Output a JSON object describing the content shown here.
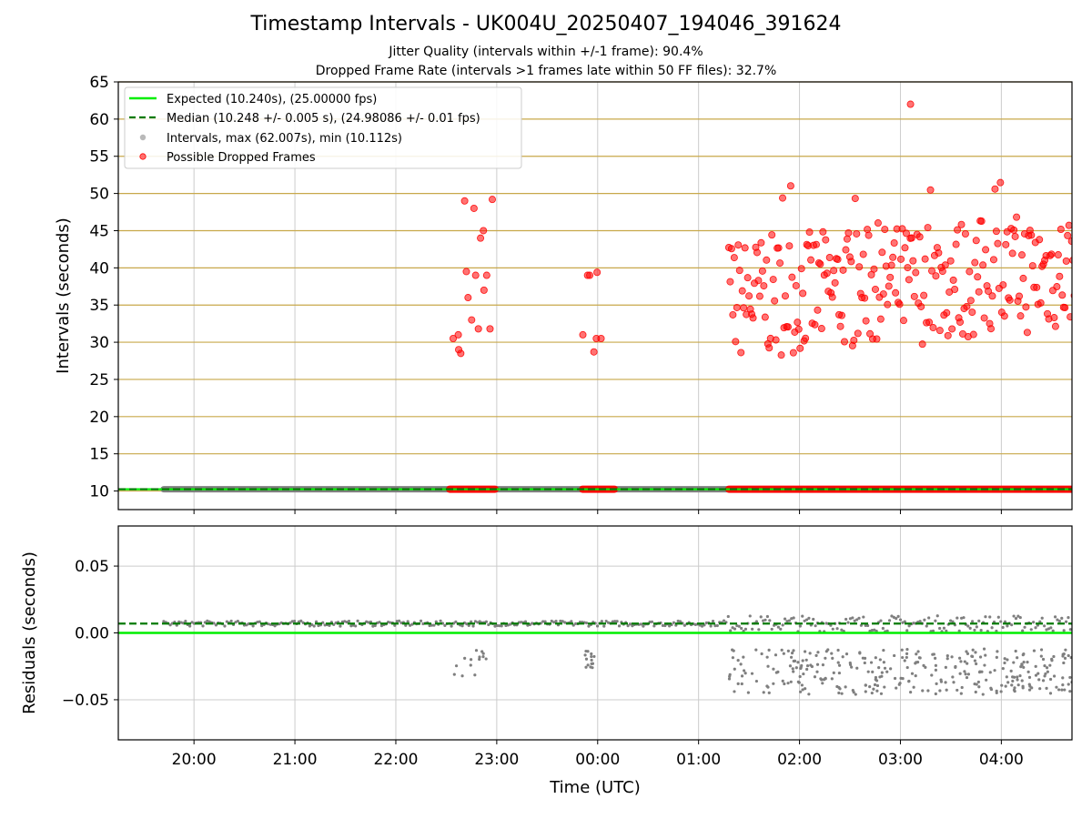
{
  "chart_data": {
    "type": "scatter",
    "title": "Timestamp Intervals - UK004U_20250407_194046_391624",
    "subtitle_lines": [
      "Jitter Quality (intervals within +/-1 frame): 90.4%",
      "Dropped Frame Rate (intervals >1 frames late within 50 FF files): 32.7%"
    ],
    "x_ticks": [
      "20:00",
      "21:00",
      "22:00",
      "23:00",
      "00:00",
      "01:00",
      "02:00",
      "03:00",
      "04:00"
    ],
    "xlabel": "Time (UTC)",
    "top_panel": {
      "ylabel": "Intervals (seconds)",
      "ylim": [
        7.5,
        65
      ],
      "y_ticks": [
        "10",
        "15",
        "20",
        "25",
        "30",
        "35",
        "40",
        "45",
        "50",
        "55",
        "60",
        "65"
      ],
      "legend": {
        "placement": "upper-left",
        "entries": [
          "Expected (10.240s), (25.00000 fps)",
          "Median (10.248 +/- 0.005 s), (24.98086 +/- 0.01 fps)",
          "Intervals, max (62.007s), min (10.112s)",
          "Possible Dropped Frames"
        ]
      },
      "expected_value": 10.24,
      "median_value": 10.248,
      "normal_interval_value": 10.24,
      "dropped_clusters": [
        {
          "x_range": [
            "22:35",
            "22:57"
          ],
          "y_values": [
            30.5,
            31,
            29,
            28.5,
            49,
            39.5,
            36,
            33,
            48,
            39,
            31.8,
            44,
            45,
            37,
            39,
            31.8,
            49.2
          ]
        },
        {
          "x_range": [
            "23:52",
            "00:02"
          ],
          "y_values": [
            31,
            39,
            39,
            28.7,
            30.5,
            39.4,
            30.5
          ]
        },
        {
          "x_range": [
            "01:18",
            "04:45"
          ],
          "y_range": [
            27.5,
            51.5
          ],
          "outlier": 62
        }
      ],
      "dropped_baseline_segments": [
        [
          "22:32",
          "22:59"
        ],
        [
          "23:51",
          "00:10"
        ],
        [
          "01:18",
          "04:45"
        ]
      ]
    },
    "bottom_panel": {
      "ylabel": "Residuals (seconds)",
      "ylim": [
        -0.08,
        0.08
      ],
      "y_ticks": [
        "0.05",
        "0.00",
        "−0.05"
      ],
      "expected_residual": 0.0,
      "median_residual": 0.007,
      "residual_clusters": [
        {
          "x_range": [
            "19:42",
            "04:45"
          ],
          "y_center": 0.007
        },
        {
          "x_range": [
            "22:34",
            "22:55"
          ],
          "y_range": [
            -0.034,
            -0.012
          ]
        },
        {
          "x_range": [
            "23:52",
            "23:58"
          ],
          "y_range": [
            -0.026,
            -0.012
          ]
        },
        {
          "x_range": [
            "01:18",
            "04:45"
          ],
          "y_range": [
            -0.046,
            -0.012
          ]
        }
      ]
    },
    "colors": {
      "expected": "#00ee00",
      "median": "#007a00",
      "intervals": "#7f7f7f",
      "dropped": "#ff0000",
      "y_grid": "#c8a84a",
      "x_grid": "#cccccc"
    }
  }
}
